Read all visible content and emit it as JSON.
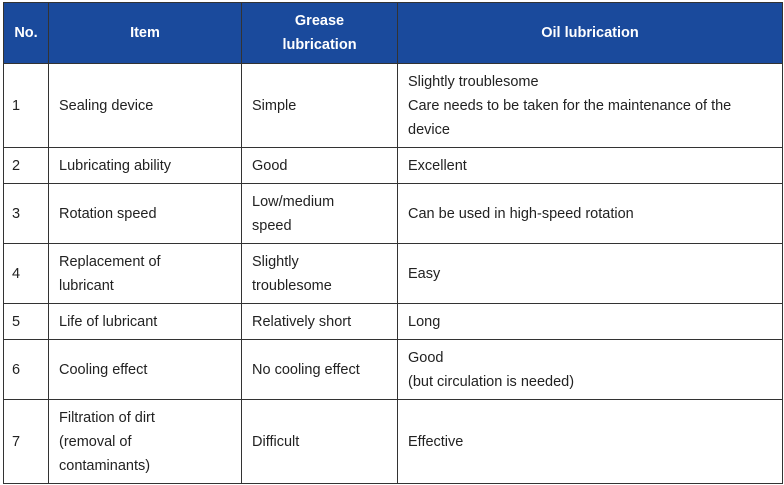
{
  "table": {
    "headers": [
      "No.",
      "Item",
      "Grease lubrication",
      "Oil lubrication"
    ],
    "rows": [
      {
        "no": "1",
        "item": [
          "Sealing device"
        ],
        "grease": [
          "Simple"
        ],
        "oil": [
          "Slightly troublesome",
          "Care needs to be taken for the maintenance of the device"
        ]
      },
      {
        "no": "2",
        "item": [
          "Lubricating ability"
        ],
        "grease": [
          "Good"
        ],
        "oil": [
          "Excellent"
        ]
      },
      {
        "no": "3",
        "item": [
          "Rotation speed"
        ],
        "grease": [
          "Low/medium speed"
        ],
        "oil": [
          "Can be used in high-speed rotation"
        ]
      },
      {
        "no": "4",
        "item": [
          "Replacement of lubricant"
        ],
        "grease": [
          "Slightly troublesome"
        ],
        "oil": [
          "Easy"
        ]
      },
      {
        "no": "5",
        "item": [
          "Life of lubricant"
        ],
        "grease": [
          "Relatively short"
        ],
        "oil": [
          "Long"
        ]
      },
      {
        "no": "6",
        "item": [
          "Cooling effect"
        ],
        "grease": [
          "No cooling effect"
        ],
        "oil": [
          "Good",
          "(but circulation is needed)"
        ]
      },
      {
        "no": "7",
        "item": [
          "Filtration of dirt (removal of contaminants)"
        ],
        "grease": [
          "Difficult"
        ],
        "oil": [
          "Effective"
        ]
      }
    ]
  }
}
